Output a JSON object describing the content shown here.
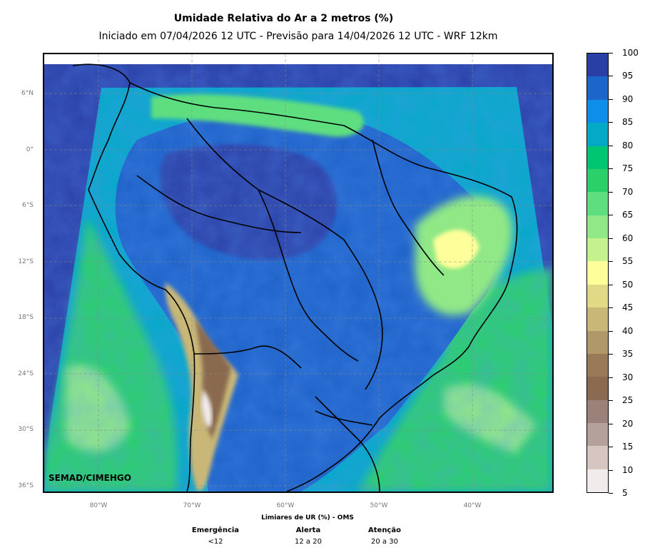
{
  "header": {
    "title": "Umidade Relativa do Ar a 2 metros (%)",
    "subtitle": "Iniciado em 07/04/2026 12 UTC - Previsão para 14/04/2026 12 UTC - WRF 12km"
  },
  "map": {
    "credit": "SEMAD/CIMEHGO",
    "lat_labels": [
      "6°N",
      "0°",
      "6°S",
      "12°S",
      "18°S",
      "24°S",
      "30°S",
      "36°S"
    ],
    "lon_labels": [
      "80°W",
      "70°W",
      "60°W",
      "50°W",
      "40°W"
    ],
    "colors": {
      "ocean_tropical": "#2a3fa6",
      "ocean_south": "#2bd06a",
      "land_humid": "#1d62c8",
      "andes_dry": "#8a6a50"
    }
  },
  "colorbar": {
    "ticks": [
      "100",
      "95",
      "90",
      "85",
      "80",
      "75",
      "70",
      "65",
      "60",
      "55",
      "50",
      "45",
      "40",
      "35",
      "30",
      "25",
      "20",
      "15",
      "10",
      "5"
    ],
    "colors": [
      "#2a3fa6",
      "#1c66c9",
      "#0d8ee8",
      "#04a9c7",
      "#00c673",
      "#2bd06a",
      "#5ede7f",
      "#90e886",
      "#c6f28e",
      "#feff9a",
      "#e2d987",
      "#c9b777",
      "#b09868",
      "#987a59",
      "#8a6a50",
      "#9a827a",
      "#b5a19c",
      "#d6c6c2",
      "#f1eceb"
    ]
  },
  "legend": {
    "title": "Limiares de UR (%) - OMS",
    "categories": [
      {
        "name": "Emergência",
        "range": "<12"
      },
      {
        "name": "Alerta",
        "range": "12 a 20"
      },
      {
        "name": "Atenção",
        "range": "20 a 30"
      }
    ]
  }
}
